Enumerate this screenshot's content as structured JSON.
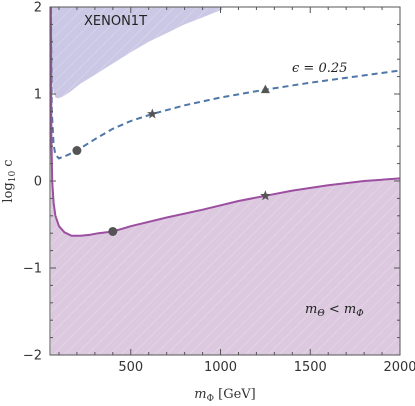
{
  "chart_data": {
    "type": "line",
    "xlabel_symbol": "m",
    "xlabel_sub": "Φ",
    "xlabel_unit": " [GeV]",
    "ylabel_main": "log",
    "ylabel_sub": "10",
    "ylabel_tail": " c",
    "xlim": [
      50,
      2000
    ],
    "ylim": [
      -2,
      2
    ],
    "x_ticks": [
      500,
      1000,
      1500,
      2000
    ],
    "y_ticks": [
      -2,
      -1,
      0,
      1,
      2
    ],
    "grid": false,
    "regions": [
      {
        "name": "XENON1T",
        "color": "#b9b6dc",
        "outline_x": [
          60,
          60,
          70,
          80,
          95,
          120,
          160,
          220,
          300,
          400,
          500,
          600,
          700,
          800,
          900,
          960,
          1010,
          1010,
          60
        ],
        "outline_y": [
          2.0,
          1.2,
          1.02,
          0.96,
          0.95,
          0.97,
          1.02,
          1.12,
          1.22,
          1.35,
          1.48,
          1.6,
          1.7,
          1.8,
          1.88,
          1.93,
          1.97,
          2.0,
          2.0
        ]
      },
      {
        "color": "#d6bfd9",
        "label_main": "m",
        "label_sub1": "Θ",
        "label_mid": " < m",
        "label_sub2": "Φ"
      }
    ],
    "series": [
      {
        "name": "ε = 0.25",
        "style": "dashed",
        "color": "#4f78a8",
        "x": [
          55,
          60,
          70,
          80,
          100,
          150,
          200,
          300,
          400,
          500,
          620,
          800,
          1000,
          1250,
          1500,
          1750,
          2000
        ],
        "y": [
          2.0,
          0.8,
          0.42,
          0.3,
          0.26,
          0.3,
          0.35,
          0.48,
          0.6,
          0.69,
          0.77,
          0.87,
          0.96,
          1.05,
          1.13,
          1.2,
          1.27
        ]
      },
      {
        "style": "solid",
        "color": "#9c4fa0",
        "x": [
          55,
          58,
          62,
          70,
          80,
          100,
          130,
          170,
          220,
          270,
          320,
          400,
          500,
          700,
          900,
          1100,
          1250,
          1400,
          1600,
          1800,
          2000
        ],
        "y": [
          2.0,
          0.5,
          0.0,
          -0.25,
          -0.4,
          -0.52,
          -0.59,
          -0.63,
          -0.63,
          -0.62,
          -0.6,
          -0.58,
          -0.52,
          -0.42,
          -0.33,
          -0.23,
          -0.17,
          -0.11,
          -0.05,
          0.0,
          0.03
        ]
      }
    ],
    "markers": [
      {
        "shape": "circle",
        "x": 200,
        "y": 0.35,
        "color": "#555555"
      },
      {
        "shape": "star",
        "x": 620,
        "y": 0.77,
        "color": "#555555"
      },
      {
        "shape": "triangle",
        "x": 1250,
        "y": 1.05,
        "color": "#555555"
      },
      {
        "shape": "circle",
        "x": 400,
        "y": -0.58,
        "color": "#555555"
      },
      {
        "shape": "star",
        "x": 1250,
        "y": -0.17,
        "color": "#555555"
      }
    ],
    "annotations": {
      "xenon_label": "XENON1T",
      "epsilon_label": "ϵ = 0.25"
    }
  }
}
